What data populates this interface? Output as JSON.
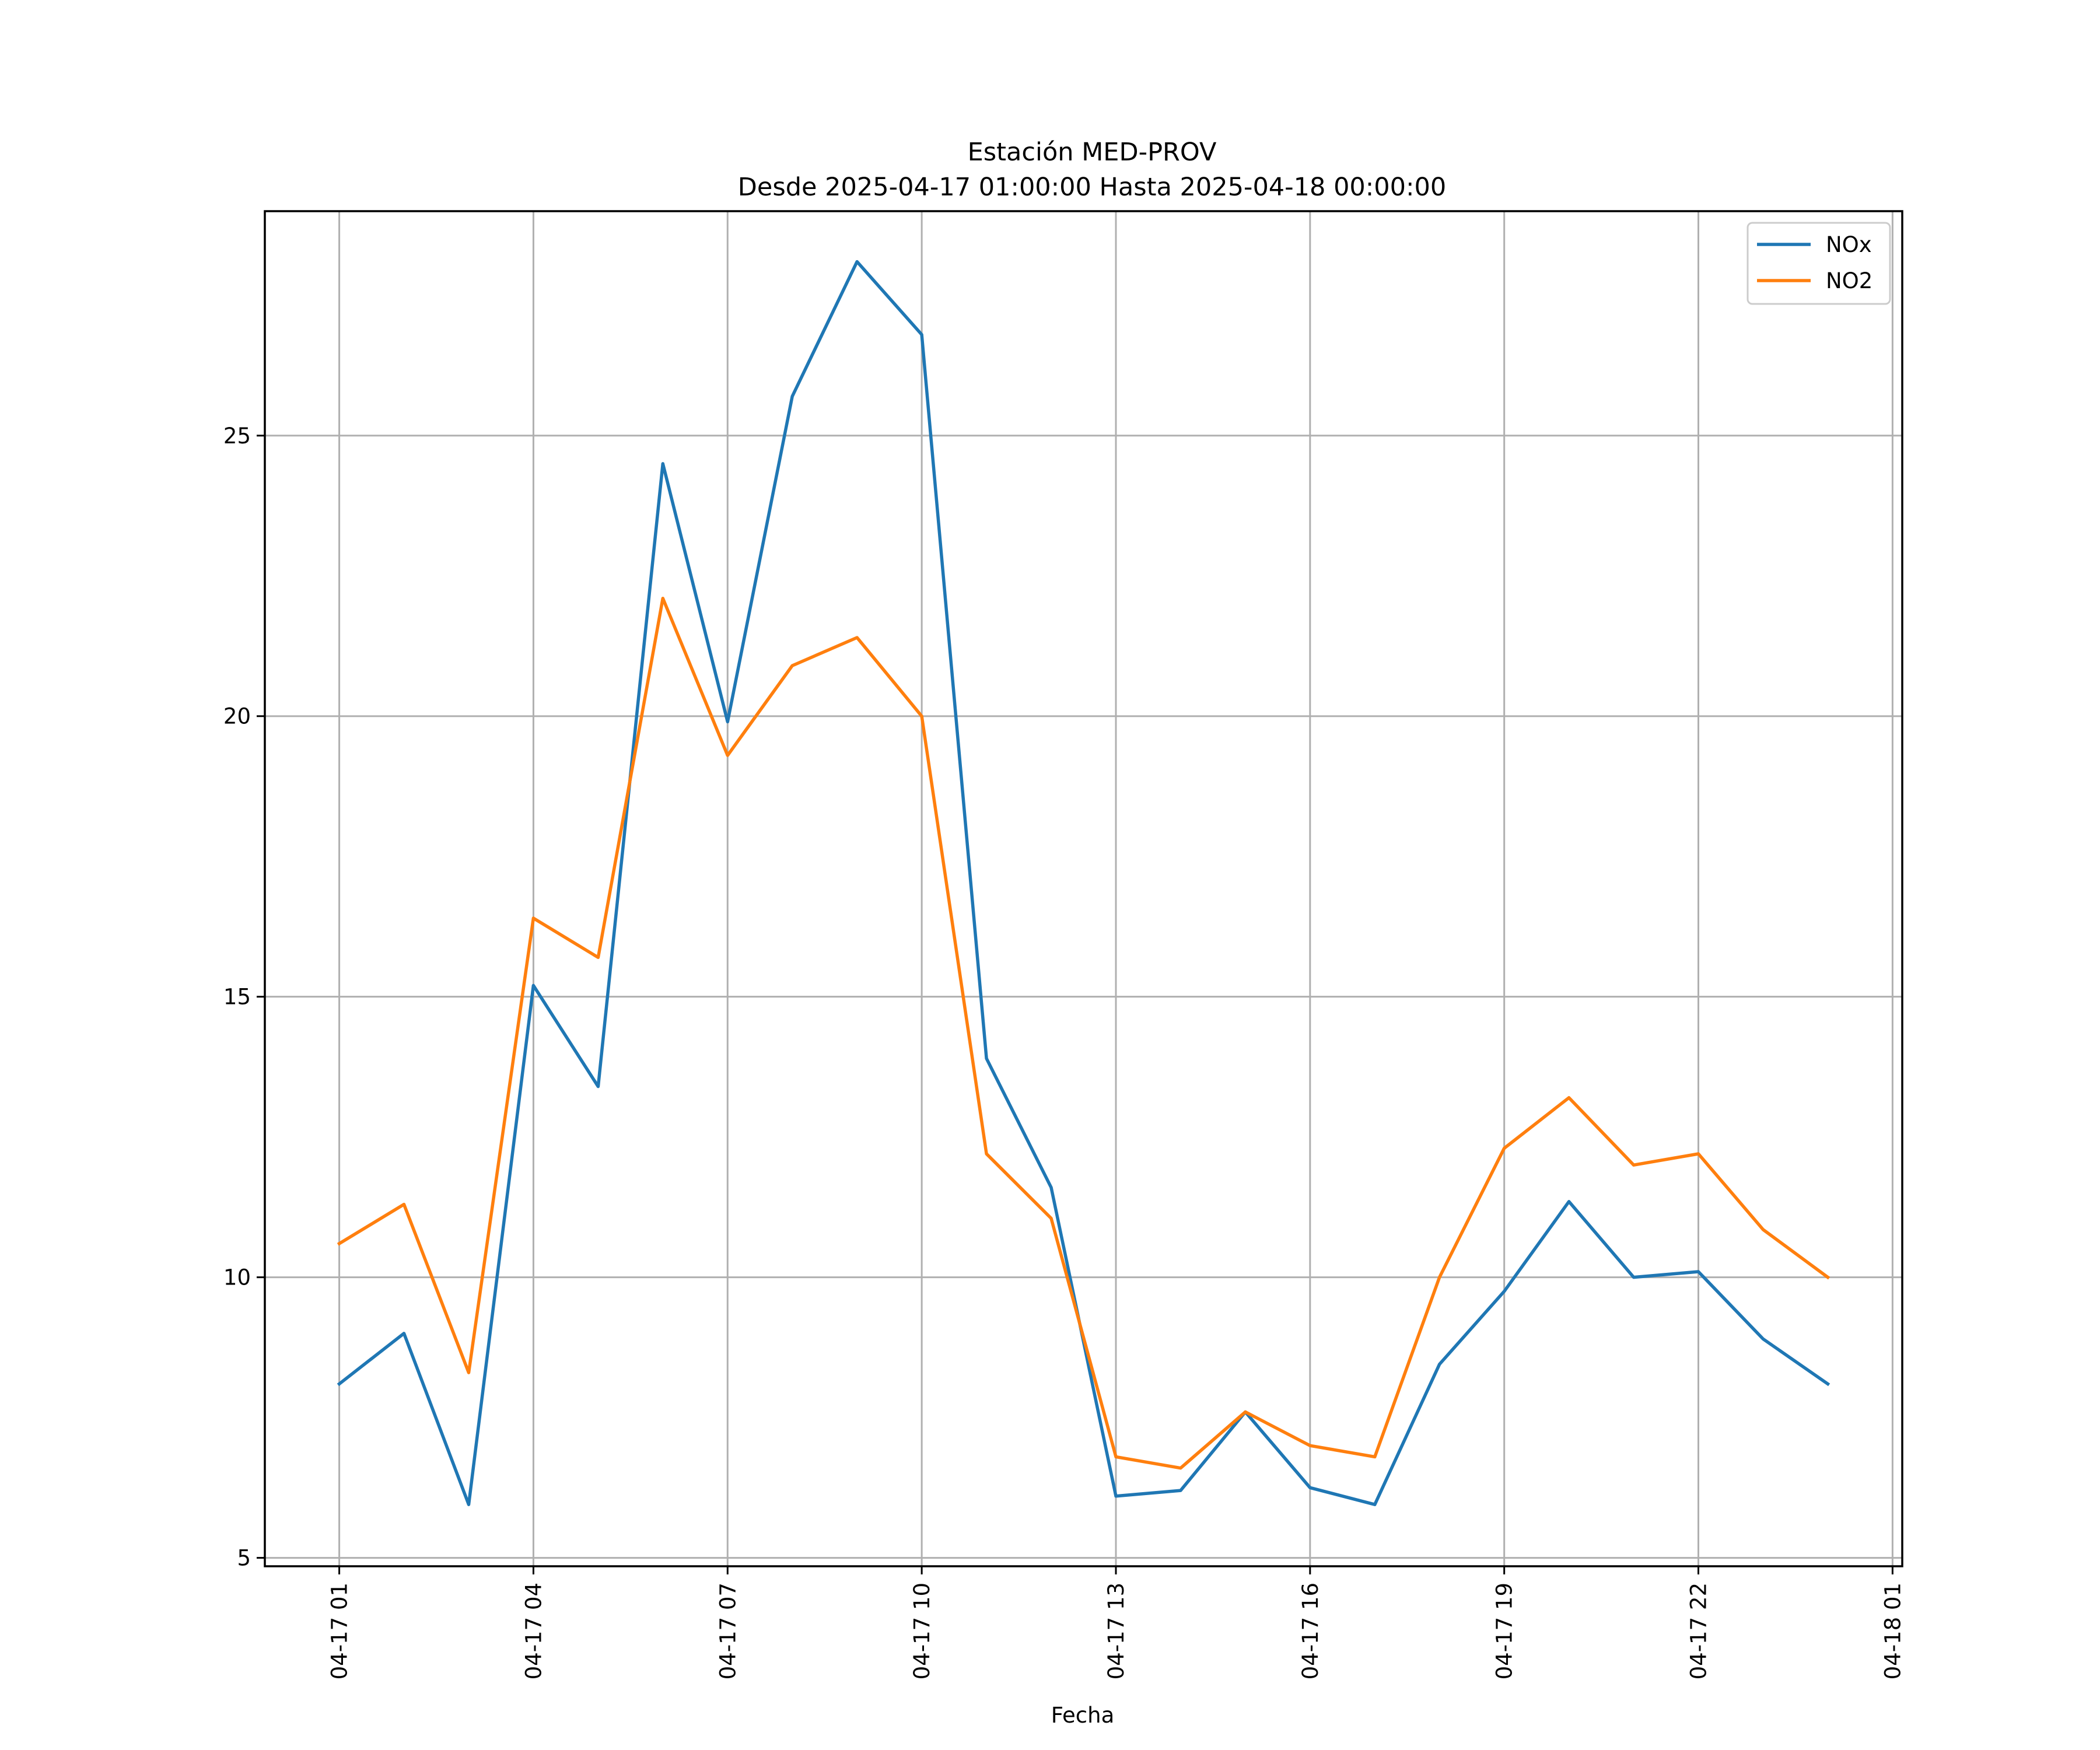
{
  "chart_data": {
    "type": "line",
    "title": "Estación MED-PROV",
    "subtitle": "Desde 2025-04-17 01:00:00 Hasta 2025-04-18 00:00:00",
    "xlabel": "Fecha",
    "ylabel": "",
    "x": [
      "04-17 01",
      "04-17 02",
      "04-17 03",
      "04-17 04",
      "04-17 05",
      "04-17 06",
      "04-17 07",
      "04-17 08",
      "04-17 09",
      "04-17 10",
      "04-17 11",
      "04-17 12",
      "04-17 13",
      "04-17 14",
      "04-17 15",
      "04-17 16",
      "04-17 17",
      "04-17 18",
      "04-17 19",
      "04-17 20",
      "04-17 21",
      "04-17 22",
      "04-17 23",
      "04-18 00"
    ],
    "xlim": [
      "04-16 23:51",
      "04-18 01:09"
    ],
    "ylim": [
      4.85,
      29.0
    ],
    "x_ticks": [
      "04-17 01",
      "04-17 04",
      "04-17 07",
      "04-17 10",
      "04-17 13",
      "04-17 16",
      "04-17 19",
      "04-17 22",
      "04-18 01"
    ],
    "y_ticks": [
      5,
      10,
      15,
      20,
      25
    ],
    "grid": true,
    "legend_position": "top-right",
    "series": [
      {
        "name": "NOx",
        "color": "#1f77b4",
        "values": [
          8.1,
          9.0,
          5.95,
          15.2,
          13.4,
          24.5,
          19.9,
          25.7,
          28.1,
          26.8,
          13.9,
          11.6,
          6.1,
          6.2,
          7.6,
          6.25,
          5.95,
          8.45,
          9.75,
          11.35,
          10.0,
          10.1,
          8.9,
          8.1
        ]
      },
      {
        "name": "NO2",
        "color": "#ff7f0e",
        "values": [
          10.6,
          11.3,
          8.3,
          16.4,
          15.7,
          22.1,
          19.3,
          20.9,
          21.4,
          20.0,
          12.2,
          11.05,
          6.8,
          6.6,
          7.6,
          7.0,
          6.8,
          10.0,
          12.3,
          13.2,
          12.0,
          12.2,
          10.85,
          10.0
        ]
      }
    ]
  }
}
